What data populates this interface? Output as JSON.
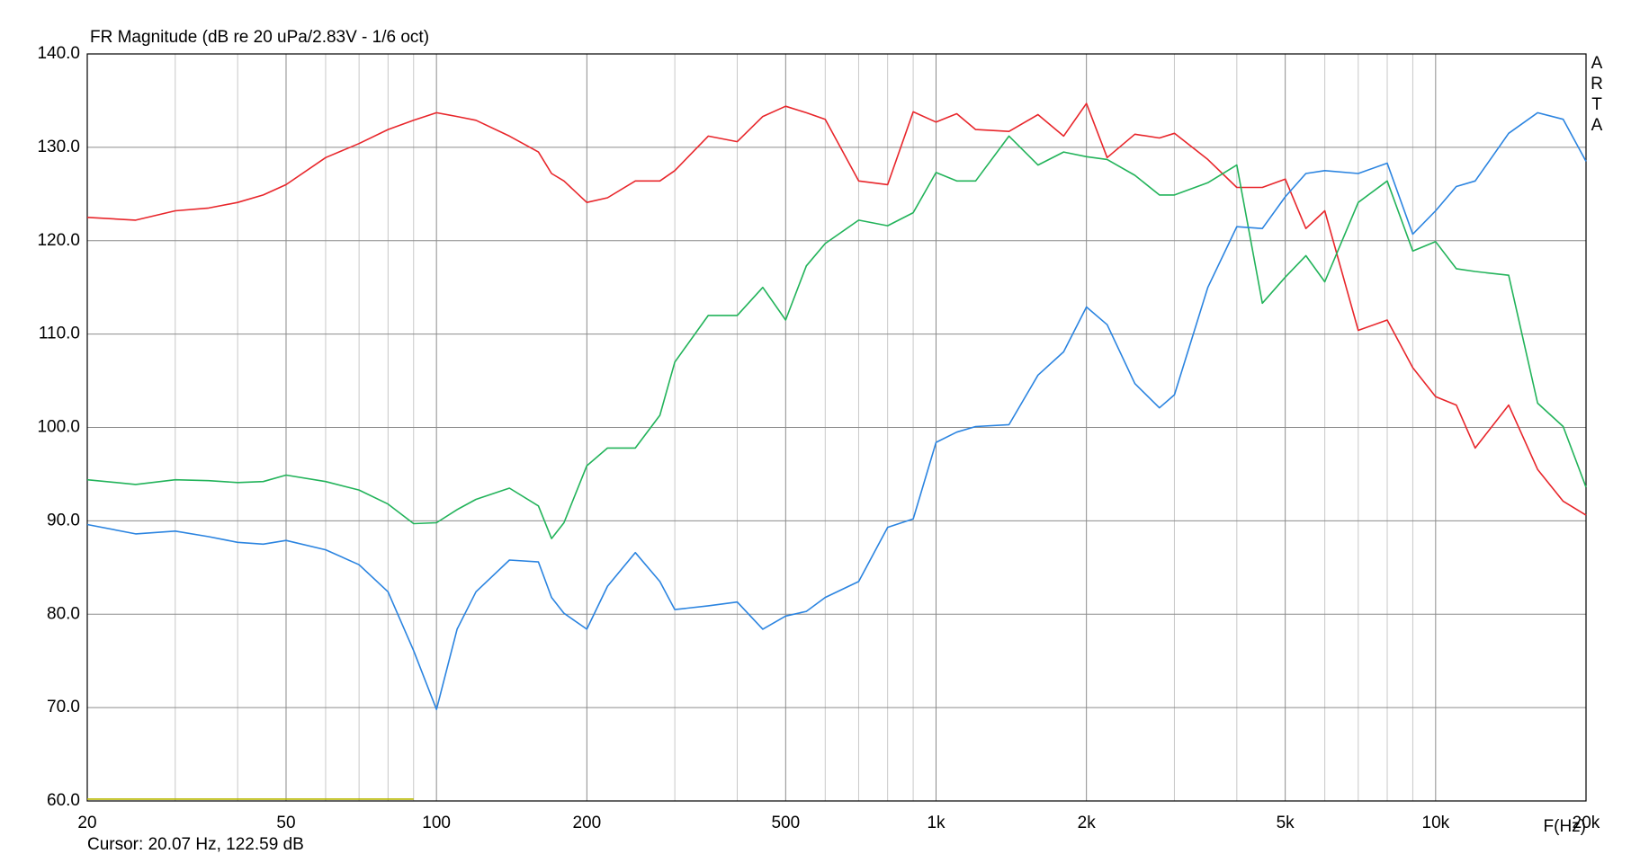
{
  "chart_data": {
    "type": "line",
    "title": "FR Magnitude (dB re 20 uPa/2.83V - 1/6 oct)",
    "side_label": "ARTA",
    "cursor_text": "Cursor: 20.07 Hz, 122.59 dB",
    "xlabel": "F(Hz)",
    "log_x": true,
    "grid": true,
    "xlim": [
      20,
      20000
    ],
    "ylim": [
      60,
      140
    ],
    "xticks": [
      20,
      50,
      100,
      200,
      500,
      {
        "value": 1000,
        "label": "1k"
      },
      {
        "value": 2000,
        "label": "2k"
      },
      {
        "value": 5000,
        "label": "5k"
      },
      {
        "value": 10000,
        "label": "10k"
      },
      {
        "value": 20000,
        "label": "20k"
      }
    ],
    "x_minor_ticks": [
      30,
      40,
      60,
      70,
      80,
      90,
      300,
      400,
      600,
      700,
      800,
      900,
      3000,
      4000,
      6000,
      7000,
      8000,
      9000
    ],
    "yticks": [
      {
        "value": 60,
        "label": "60.0"
      },
      {
        "value": 70,
        "label": "70.0"
      },
      {
        "value": 80,
        "label": "80.0"
      },
      {
        "value": 90,
        "label": "90.0"
      },
      {
        "value": 100,
        "label": "100.0"
      },
      {
        "value": 110,
        "label": "110.0"
      },
      {
        "value": 120,
        "label": "120.0"
      },
      {
        "value": 130,
        "label": "130.0"
      },
      {
        "value": 140,
        "label": "140.0"
      }
    ],
    "x": [
      20,
      25,
      30,
      35,
      40,
      45,
      50,
      60,
      70,
      80,
      90,
      100,
      110,
      120,
      140,
      160,
      170,
      180,
      200,
      220,
      250,
      280,
      300,
      350,
      400,
      450,
      500,
      550,
      600,
      700,
      800,
      900,
      1000,
      1100,
      1200,
      1400,
      1600,
      1800,
      2000,
      2200,
      2500,
      2800,
      3000,
      3500,
      4000,
      4500,
      5000,
      5500,
      6000,
      7000,
      8000,
      9000,
      10000,
      11000,
      12000,
      14000,
      16000,
      18000,
      20000
    ],
    "series": [
      {
        "color": "#e8262b",
        "values": [
          122.5,
          122.2,
          123.2,
          123.5,
          124.1,
          124.9,
          126,
          128.9,
          130.4,
          131.9,
          132.9,
          133.7,
          133.3,
          132.9,
          131.2,
          129.5,
          127.2,
          126.4,
          124.1,
          124.6,
          126.4,
          126.4,
          127.5,
          131.2,
          130.6,
          133.3,
          134.4,
          133.7,
          133,
          126.4,
          126,
          133.8,
          132.7,
          133.6,
          131.9,
          131.7,
          133.5,
          131.2,
          134.7,
          128.9,
          131.4,
          131,
          131.5,
          128.7,
          125.7,
          125.7,
          126.6,
          121.3,
          123.2,
          110.4,
          111.5,
          106.4,
          103.3,
          102.4,
          97.8,
          102.4,
          95.5,
          92.1,
          90.6
        ]
      },
      {
        "color": "#22b35a",
        "values": [
          94.4,
          93.9,
          94.4,
          94.3,
          94.1,
          94.2,
          94.9,
          94.2,
          93.3,
          91.8,
          89.7,
          89.8,
          91.2,
          92.3,
          93.5,
          91.6,
          88.1,
          89.8,
          95.9,
          97.8,
          97.8,
          101.3,
          107,
          112,
          112,
          115,
          111.5,
          117.3,
          119.7,
          122.2,
          121.6,
          123,
          127.3,
          126.4,
          126.4,
          131.2,
          128.1,
          129.5,
          129,
          128.7,
          127,
          124.9,
          124.9,
          126.2,
          128.1,
          113.3,
          116.1,
          118.4,
          115.6,
          124.1,
          126.4,
          118.9,
          119.9,
          117,
          116.7,
          116.3,
          102.6,
          100.1,
          93.6
        ]
      },
      {
        "color": "#2b84e0",
        "values": [
          89.6,
          88.6,
          88.9,
          88.3,
          87.7,
          87.5,
          87.9,
          86.9,
          85.3,
          82.4,
          76.1,
          69.8,
          78.4,
          82.4,
          85.8,
          85.6,
          81.8,
          80.1,
          78.4,
          83,
          86.6,
          83.5,
          80.5,
          80.9,
          81.3,
          78.4,
          79.8,
          80.3,
          81.8,
          83.5,
          89.3,
          90.2,
          98.4,
          99.5,
          100.1,
          100.3,
          105.6,
          108.1,
          112.9,
          111,
          104.7,
          102.1,
          103.5,
          115,
          121.5,
          121.3,
          124.7,
          127.2,
          127.5,
          127.2,
          128.3,
          120.7,
          123.2,
          125.8,
          126.4,
          131.5,
          133.7,
          133,
          128.5
        ]
      },
      {
        "color": "#b8b800",
        "x": [
          20,
          90
        ],
        "values": [
          60.2,
          60.2
        ]
      }
    ]
  }
}
